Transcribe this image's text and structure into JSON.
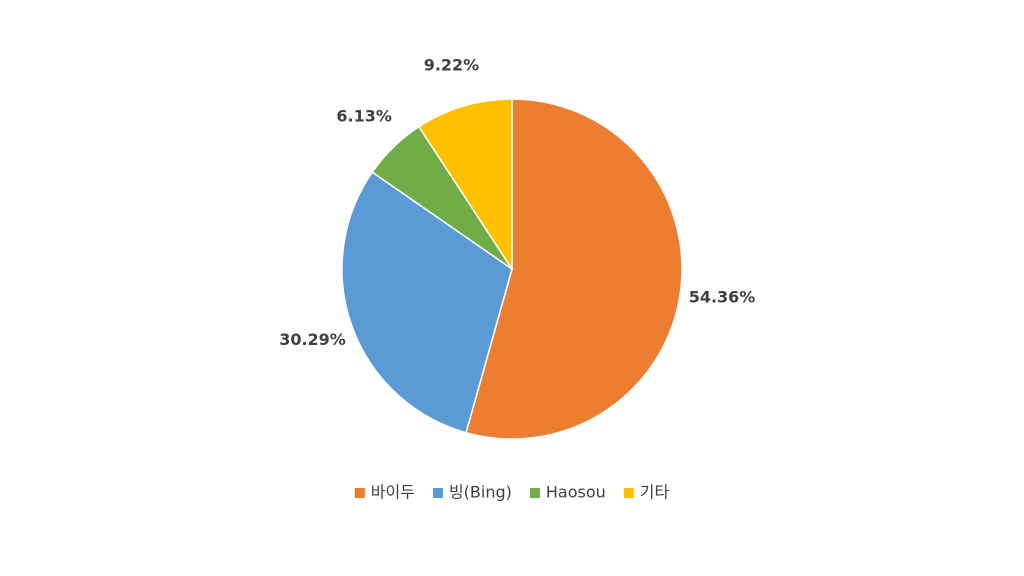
{
  "chart_data": {
    "type": "pie",
    "categories": [
      "바이두",
      "빙(Bing)",
      "Haosou",
      "기타"
    ],
    "values": [
      54.36,
      30.29,
      6.13,
      9.22
    ],
    "value_labels": [
      "54.36%",
      "30.29%",
      "6.13%",
      "9.22%"
    ],
    "colors": [
      "#ed7d31",
      "#5b9bd5",
      "#70ad47",
      "#ffc000"
    ],
    "legend": "bottom"
  }
}
